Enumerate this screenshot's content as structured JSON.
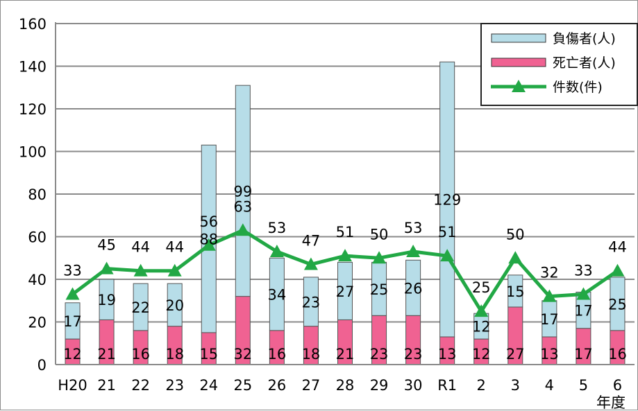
{
  "chart_data": {
    "type": "bar",
    "stacked": true,
    "categories": [
      "H20",
      "21",
      "22",
      "23",
      "24",
      "25",
      "26",
      "27",
      "28",
      "29",
      "30",
      "R1",
      "2",
      "3",
      "4",
      "5",
      "6"
    ],
    "xlabel": "年度",
    "ylim": [
      0,
      160
    ],
    "yticks": [
      0,
      20,
      40,
      60,
      80,
      100,
      120,
      140,
      160
    ],
    "grid": true,
    "legend_position": "top-right",
    "series": [
      {
        "name": "死亡者(人)",
        "kind": "bar",
        "color": "#f06292",
        "values": [
          12,
          21,
          16,
          18,
          15,
          32,
          16,
          18,
          21,
          23,
          23,
          13,
          12,
          27,
          13,
          17,
          16
        ]
      },
      {
        "name": "負傷者(人)",
        "kind": "bar",
        "color": "#b7dde8",
        "values": [
          17,
          19,
          22,
          20,
          88,
          99,
          34,
          23,
          27,
          25,
          26,
          129,
          12,
          15,
          17,
          17,
          25
        ]
      },
      {
        "name": "件数(件)",
        "kind": "line",
        "color": "#22a845",
        "marker": "triangle",
        "values": [
          33,
          45,
          44,
          44,
          56,
          63,
          53,
          47,
          51,
          50,
          53,
          51,
          25,
          50,
          32,
          33,
          44
        ]
      }
    ],
    "legend": [
      "負傷者(人)",
      "死亡者(人)",
      "件数(件)"
    ]
  }
}
